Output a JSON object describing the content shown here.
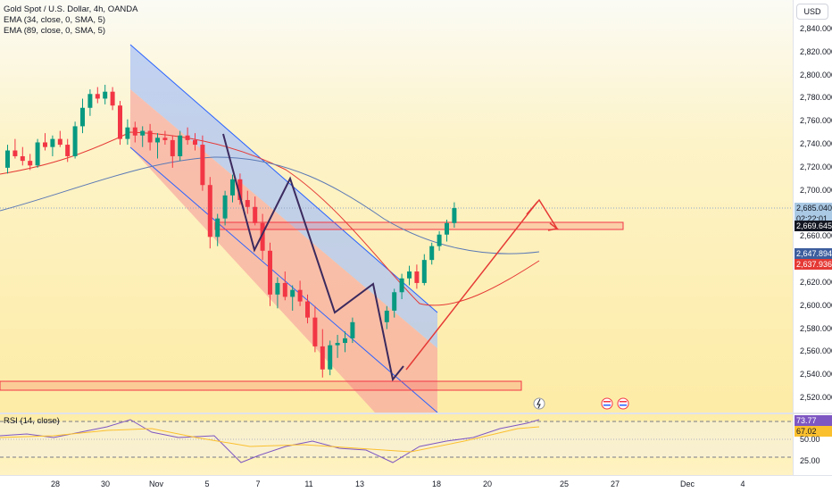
{
  "legend": {
    "title": "Gold Spot / U.S. Dollar, 4h, OANDA",
    "ema1": "EMA (34, close, 0, SMA, 5)",
    "ema2": "EMA (89, close, 0, SMA, 5)"
  },
  "rsi_legend": "RSI (14, close)",
  "currency": "USD",
  "price_ticks": [
    "2,840.000",
    "2,820.000",
    "2,800.000",
    "2,780.000",
    "2,760.000",
    "2,740.000",
    "2,720.000",
    "2,700.000",
    "2,660.000",
    "2,620.000",
    "2,600.000",
    "2,580.000",
    "2,560.000",
    "2,540.000",
    "2,520.000"
  ],
  "price_tags": {
    "last": "2,685.040",
    "countdown": "02:22:01",
    "level": "2,669.645",
    "ema34": "2,647.894",
    "ema89": "2,637.936"
  },
  "rsi_ticks": [
    "50.00",
    "25.00"
  ],
  "rsi_tags": {
    "rsi": "73.77",
    "ma": "67.02"
  },
  "time_labels": [
    "28",
    "30",
    "Nov",
    "5",
    "7",
    "11",
    "13",
    "18",
    "20",
    "25",
    "27",
    "Dec",
    "4"
  ],
  "colors": {
    "up": "#089981",
    "down": "#f23645",
    "channel_blue": "#aec4f4",
    "channel_red": "#f7a8a0",
    "zone": "#f23645",
    "ema34": "#e53935",
    "ema89": "#5b79b5",
    "zigzag": "#3b2a5e"
  },
  "icons": [
    "lightning-icon",
    "us-flag-icon",
    "us-flag-icon"
  ],
  "chart_data": {
    "type": "candlestick",
    "title": "Gold Spot / U.S. Dollar, 4h, OANDA",
    "ylim": [
      2510,
      2850
    ],
    "last_price": 2685.04,
    "resistance_zone": [
      2666,
      2672
    ],
    "support_zone": [
      2528,
      2536
    ],
    "candles": [
      [
        2720,
        2740,
        2715,
        2735
      ],
      [
        2735,
        2745,
        2728,
        2730
      ],
      [
        2730,
        2738,
        2722,
        2726
      ],
      [
        2726,
        2732,
        2718,
        2722
      ],
      [
        2722,
        2745,
        2720,
        2742
      ],
      [
        2742,
        2750,
        2735,
        2738
      ],
      [
        2738,
        2748,
        2730,
        2745
      ],
      [
        2745,
        2752,
        2738,
        2740
      ],
      [
        2740,
        2745,
        2725,
        2730
      ],
      [
        2730,
        2760,
        2728,
        2756
      ],
      [
        2756,
        2780,
        2750,
        2772
      ],
      [
        2772,
        2788,
        2765,
        2784
      ],
      [
        2784,
        2790,
        2776,
        2780
      ],
      [
        2780,
        2792,
        2775,
        2786
      ],
      [
        2786,
        2790,
        2770,
        2774
      ],
      [
        2774,
        2778,
        2740,
        2745
      ],
      [
        2745,
        2762,
        2740,
        2755
      ],
      [
        2755,
        2760,
        2742,
        2748
      ],
      [
        2748,
        2756,
        2738,
        2752
      ],
      [
        2752,
        2758,
        2735,
        2742
      ],
      [
        2742,
        2750,
        2728,
        2746
      ],
      [
        2746,
        2752,
        2740,
        2744
      ],
      [
        2744,
        2748,
        2720,
        2730
      ],
      [
        2730,
        2752,
        2726,
        2748
      ],
      [
        2748,
        2755,
        2740,
        2744
      ],
      [
        2744,
        2750,
        2735,
        2740
      ],
      [
        2740,
        2748,
        2700,
        2705
      ],
      [
        2705,
        2712,
        2650,
        2660
      ],
      [
        2660,
        2680,
        2652,
        2676
      ],
      [
        2676,
        2700,
        2670,
        2696
      ],
      [
        2696,
        2714,
        2690,
        2710
      ],
      [
        2710,
        2715,
        2688,
        2692
      ],
      [
        2692,
        2700,
        2680,
        2686
      ],
      [
        2686,
        2695,
        2670,
        2672
      ],
      [
        2672,
        2680,
        2640,
        2648
      ],
      [
        2648,
        2655,
        2600,
        2610
      ],
      [
        2610,
        2625,
        2598,
        2620
      ],
      [
        2620,
        2630,
        2605,
        2608
      ],
      [
        2608,
        2618,
        2596,
        2614
      ],
      [
        2614,
        2622,
        2600,
        2604
      ],
      [
        2604,
        2610,
        2585,
        2590
      ],
      [
        2590,
        2600,
        2560,
        2565
      ],
      [
        2565,
        2580,
        2538,
        2545
      ],
      [
        2545,
        2570,
        2540,
        2566
      ],
      [
        2566,
        2575,
        2555,
        2568
      ],
      [
        2568,
        2578,
        2560,
        2572
      ],
      [
        2572,
        2590,
        2568,
        2586
      ],
      [
        2586,
        2600,
        2580,
        2596
      ],
      [
        2596,
        2615,
        2590,
        2612
      ],
      [
        2612,
        2628,
        2606,
        2624
      ],
      [
        2624,
        2635,
        2618,
        2630
      ],
      [
        2630,
        2636,
        2615,
        2620
      ],
      [
        2620,
        2645,
        2618,
        2640
      ],
      [
        2640,
        2655,
        2636,
        2652
      ],
      [
        2652,
        2665,
        2648,
        2662
      ],
      [
        2662,
        2675,
        2656,
        2672
      ],
      [
        2672,
        2690,
        2668,
        2685
      ]
    ]
  }
}
